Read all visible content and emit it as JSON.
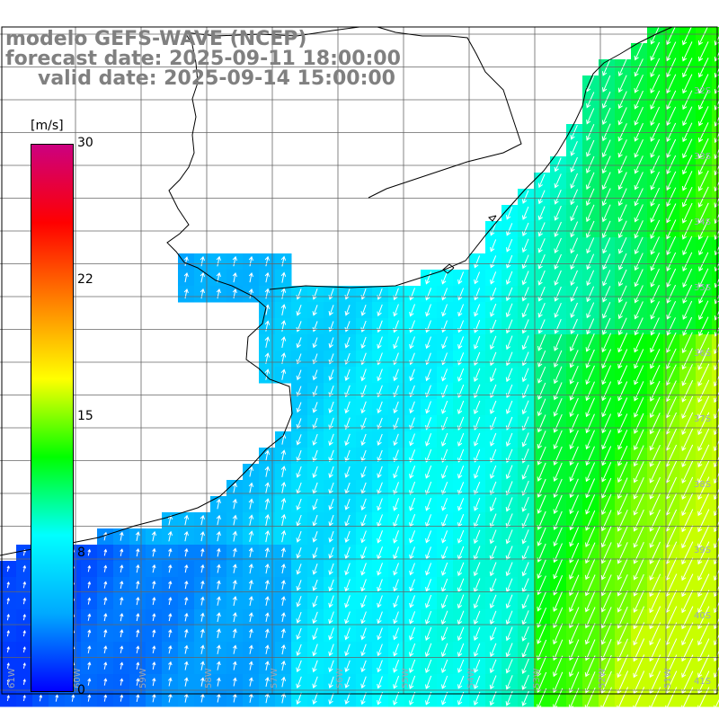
{
  "title": {
    "line1": "modelo GEFS-WAVE (NCEP)",
    "line2": "forecast date: 2025-09-11 18:00:00",
    "line3": "valid date: 2025-09-14 15:00:00"
  },
  "colorbar": {
    "unit": "[m/s]",
    "ticks": [
      "30",
      "22",
      "15",
      "8",
      "0"
    ],
    "tick_values": [
      30,
      22,
      15,
      8,
      0
    ],
    "range": [
      0,
      30
    ],
    "colors": [
      "#0000ff",
      "#00aaff",
      "#00ffff",
      "#00ff00",
      "#ffff00",
      "#ff8000",
      "#ff0000",
      "#cc0080"
    ]
  },
  "map": {
    "variable": "wind speed and direction",
    "grid_lines": true,
    "land_color": "#ffffff",
    "lat_labels": [
      "32S",
      "33S",
      "34S",
      "35S",
      "36S",
      "37S",
      "38S",
      "39S",
      "40S",
      "41S"
    ],
    "lon_labels": [
      "61W",
      "60W",
      "59W",
      "58W",
      "57W",
      "56W",
      "55W",
      "54W",
      "53W",
      "52W",
      "51W"
    ]
  }
}
